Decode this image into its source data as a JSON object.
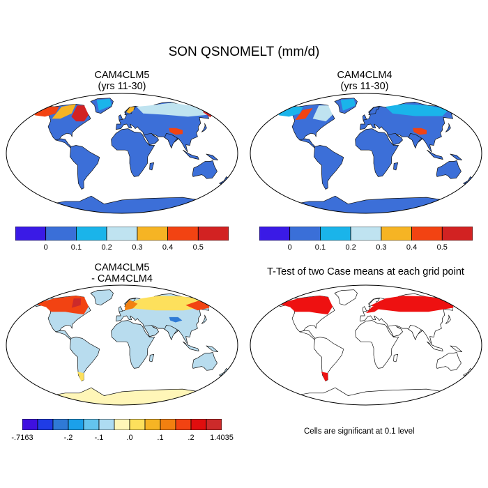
{
  "title": "SON QSNOMELT (mm/d)",
  "panels": {
    "tl": {
      "title_line1": "CAM4CLM5",
      "title_line2": "(yrs 11-30)"
    },
    "tr": {
      "title_line1": "CAM4CLM4",
      "title_line2": "(yrs 11-30)"
    },
    "bl": {
      "title_line1": "CAM4CLM5",
      "title_line2": "- CAM4CLM4"
    },
    "br": {
      "title_line1": "T-Test of two Case means at each grid point"
    }
  },
  "colorbars": {
    "field": {
      "colors": [
        "#3a1ae6",
        "#3a6fd8",
        "#1ab4ea",
        "#bfe3f0",
        "#f6b424",
        "#f24312",
        "#d22222"
      ],
      "labels": [
        "0",
        "0.1",
        "0.2",
        "0.3",
        "0.4",
        "0.5"
      ]
    },
    "diff": {
      "colors": [
        "#3f10e0",
        "#1f3ce6",
        "#2f7ad6",
        "#1ba0ea",
        "#64c4ee",
        "#aedcf2",
        "#fff6b8",
        "#fde05c",
        "#f6b424",
        "#f28010",
        "#f24312",
        "#e00e0e",
        "#cc2a2a"
      ],
      "labels": [
        "-.7163",
        "-.2",
        "-.1",
        ".0",
        ".1",
        ".2",
        "1.4035"
      ]
    }
  },
  "ttest_note": "Cells are significant at 0.1 level",
  "colors": {
    "ocean": "#ffffff",
    "land_field": "#3c6fd8",
    "land_diff": "#b8dcee",
    "significant": "#ee1111"
  }
}
